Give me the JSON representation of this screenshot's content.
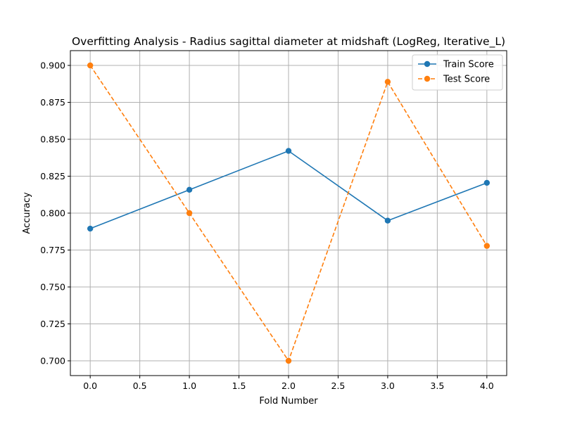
{
  "chart_data": {
    "type": "line",
    "title": "Overfitting Analysis - Radius sagittal diameter at midshaft (LogReg, Iterative_L)",
    "xlabel": "Fold Number",
    "ylabel": "Accuracy",
    "xlim": [
      -0.2,
      4.2
    ],
    "ylim": [
      0.69,
      0.91
    ],
    "xticks": [
      0.0,
      0.5,
      1.0,
      1.5,
      2.0,
      2.5,
      3.0,
      3.5,
      4.0
    ],
    "xtick_labels": [
      "0.0",
      "0.5",
      "1.0",
      "1.5",
      "2.0",
      "2.5",
      "3.0",
      "3.5",
      "4.0"
    ],
    "yticks": [
      0.7,
      0.725,
      0.75,
      0.775,
      0.8,
      0.825,
      0.85,
      0.875,
      0.9
    ],
    "ytick_labels": [
      "0.700",
      "0.725",
      "0.750",
      "0.775",
      "0.800",
      "0.825",
      "0.850",
      "0.875",
      "0.900"
    ],
    "grid": true,
    "legend_position": "top-right",
    "x": [
      0,
      1,
      2,
      3,
      4
    ],
    "series": [
      {
        "name": "Train Score",
        "values": [
          0.7895,
          0.8158,
          0.8421,
          0.7949,
          0.8205
        ],
        "color": "#1f77b4",
        "line_style": "solid",
        "marker": "circle"
      },
      {
        "name": "Test Score",
        "values": [
          0.9,
          0.8,
          0.7,
          0.8889,
          0.7778
        ],
        "color": "#ff7f0e",
        "line_style": "dashed",
        "marker": "circle"
      }
    ]
  }
}
